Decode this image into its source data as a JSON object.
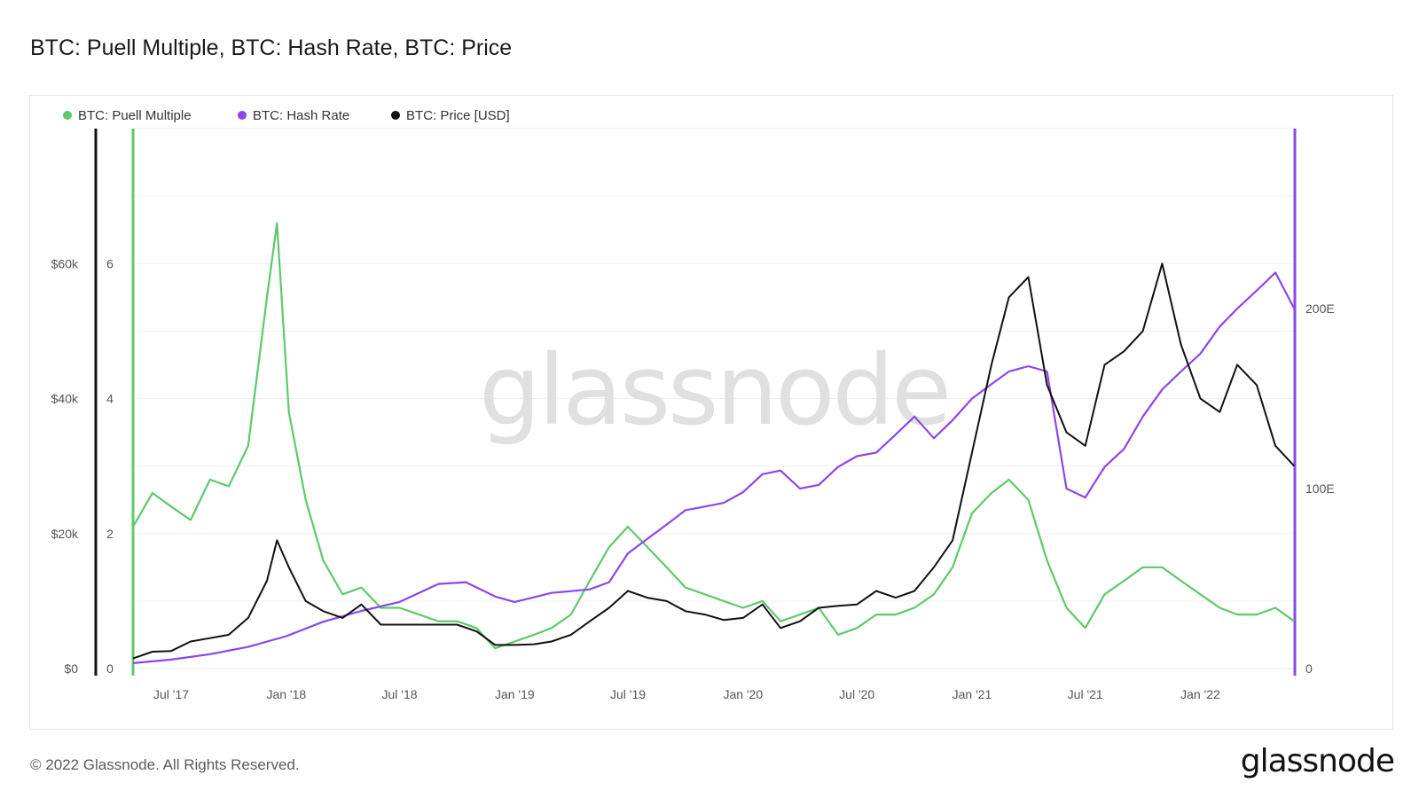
{
  "title": "BTC: Puell Multiple, BTC: Hash Rate, BTC: Price",
  "footer": {
    "copyright": "© 2022 Glassnode. All Rights Reserved.",
    "logo": "glassnode"
  },
  "watermark": "glassnode",
  "chart_data": {
    "type": "line",
    "legend_position": "top-left",
    "grid": true,
    "x_ticks": [
      "Jul '17",
      "Jan '18",
      "Jul '18",
      "Jan '19",
      "Jul '19",
      "Jan '20",
      "Jul '20",
      "Jan '21",
      "Jul '21",
      "Jan '22"
    ],
    "x_range": [
      "2017-05-01",
      "2022-06-01"
    ],
    "axes": {
      "price": {
        "ticks": [
          "$0",
          "$20k",
          "$40k",
          "$60k"
        ],
        "range": [
          0,
          80000
        ],
        "color": "#111111"
      },
      "puell": {
        "ticks": [
          "0",
          "2",
          "4",
          "6"
        ],
        "range": [
          0,
          8
        ],
        "color": "#5ec96a"
      },
      "hash": {
        "ticks": [
          "0",
          "100E",
          "200E"
        ],
        "range": [
          0,
          300
        ],
        "color": "#8b47e8"
      }
    },
    "series": [
      {
        "name": "BTC: Puell Multiple",
        "axis": "puell",
        "color": "#5ec96a",
        "x": [
          "2017-05-01",
          "2017-06-01",
          "2017-07-01",
          "2017-08-01",
          "2017-09-01",
          "2017-10-01",
          "2017-11-01",
          "2017-12-01",
          "2017-12-17",
          "2018-01-05",
          "2018-02-01",
          "2018-03-01",
          "2018-04-01",
          "2018-05-01",
          "2018-06-01",
          "2018-07-01",
          "2018-08-01",
          "2018-09-01",
          "2018-10-01",
          "2018-11-01",
          "2018-12-01",
          "2019-01-01",
          "2019-02-01",
          "2019-03-01",
          "2019-04-01",
          "2019-05-01",
          "2019-06-01",
          "2019-07-01",
          "2019-08-01",
          "2019-09-01",
          "2019-10-01",
          "2019-11-01",
          "2019-12-01",
          "2020-01-01",
          "2020-02-01",
          "2020-03-01",
          "2020-04-01",
          "2020-05-01",
          "2020-06-01",
          "2020-07-01",
          "2020-08-01",
          "2020-09-01",
          "2020-10-01",
          "2020-11-01",
          "2020-12-01",
          "2021-01-01",
          "2021-02-01",
          "2021-03-01",
          "2021-04-01",
          "2021-05-01",
          "2021-06-01",
          "2021-07-01",
          "2021-08-01",
          "2021-09-01",
          "2021-10-01",
          "2021-11-01",
          "2021-12-01",
          "2022-01-01",
          "2022-02-01",
          "2022-03-01",
          "2022-04-01",
          "2022-05-01",
          "2022-05-31"
        ],
        "values": [
          2.1,
          2.6,
          2.4,
          2.2,
          2.8,
          2.7,
          3.3,
          5.5,
          6.6,
          3.8,
          2.5,
          1.6,
          1.1,
          1.2,
          0.9,
          0.9,
          0.8,
          0.7,
          0.7,
          0.6,
          0.3,
          0.4,
          0.5,
          0.6,
          0.8,
          1.3,
          1.8,
          2.1,
          1.8,
          1.5,
          1.2,
          1.1,
          1.0,
          0.9,
          1.0,
          0.7,
          0.8,
          0.9,
          0.5,
          0.6,
          0.8,
          0.8,
          0.9,
          1.1,
          1.5,
          2.3,
          2.6,
          2.8,
          2.5,
          1.6,
          0.9,
          0.6,
          1.1,
          1.3,
          1.5,
          1.5,
          1.3,
          1.1,
          0.9,
          0.8,
          0.8,
          0.9,
          0.7
        ]
      },
      {
        "name": "BTC: Hash Rate",
        "axis": "hash",
        "color": "#8b47e8",
        "x": [
          "2017-05-01",
          "2017-07-01",
          "2017-09-01",
          "2017-11-01",
          "2018-01-01",
          "2018-03-01",
          "2018-05-01",
          "2018-07-01",
          "2018-09-01",
          "2018-10-15",
          "2018-12-01",
          "2019-01-01",
          "2019-03-01",
          "2019-05-01",
          "2019-06-01",
          "2019-07-01",
          "2019-08-01",
          "2019-09-01",
          "2019-10-01",
          "2019-11-01",
          "2019-12-01",
          "2020-01-01",
          "2020-02-01",
          "2020-03-01",
          "2020-04-01",
          "2020-05-01",
          "2020-06-01",
          "2020-07-01",
          "2020-08-01",
          "2020-09-01",
          "2020-10-01",
          "2020-11-01",
          "2020-12-01",
          "2021-01-01",
          "2021-02-01",
          "2021-03-01",
          "2021-04-01",
          "2021-05-01",
          "2021-06-01",
          "2021-07-01",
          "2021-08-01",
          "2021-09-01",
          "2021-10-01",
          "2021-11-01",
          "2021-12-01",
          "2022-01-01",
          "2022-02-01",
          "2022-03-01",
          "2022-04-01",
          "2022-05-01",
          "2022-05-31"
        ],
        "values": [
          3,
          5,
          8,
          12,
          18,
          26,
          32,
          37,
          47,
          48,
          40,
          37,
          42,
          44,
          48,
          64,
          72,
          80,
          88,
          90,
          92,
          98,
          108,
          110,
          100,
          102,
          112,
          118,
          120,
          130,
          140,
          128,
          138,
          150,
          158,
          165,
          168,
          165,
          100,
          95,
          112,
          122,
          140,
          155,
          165,
          175,
          190,
          200,
          210,
          220,
          200
        ]
      },
      {
        "name": "BTC: Price [USD]",
        "axis": "price",
        "color": "#111111",
        "x": [
          "2017-05-01",
          "2017-06-01",
          "2017-07-01",
          "2017-08-01",
          "2017-09-01",
          "2017-10-01",
          "2017-11-01",
          "2017-12-01",
          "2017-12-17",
          "2018-01-05",
          "2018-02-01",
          "2018-03-01",
          "2018-04-01",
          "2018-05-01",
          "2018-06-01",
          "2018-07-01",
          "2018-08-01",
          "2018-09-01",
          "2018-10-01",
          "2018-11-01",
          "2018-12-01",
          "2019-01-01",
          "2019-02-01",
          "2019-03-01",
          "2019-04-01",
          "2019-05-01",
          "2019-06-01",
          "2019-07-01",
          "2019-08-01",
          "2019-09-01",
          "2019-10-01",
          "2019-11-01",
          "2019-12-01",
          "2020-01-01",
          "2020-02-01",
          "2020-03-01",
          "2020-04-01",
          "2020-05-01",
          "2020-06-01",
          "2020-07-01",
          "2020-08-01",
          "2020-09-01",
          "2020-10-01",
          "2020-11-01",
          "2020-12-01",
          "2021-01-01",
          "2021-02-01",
          "2021-03-01",
          "2021-04-01",
          "2021-05-01",
          "2021-06-01",
          "2021-07-01",
          "2021-08-01",
          "2021-09-01",
          "2021-10-01",
          "2021-11-01",
          "2021-12-01",
          "2022-01-01",
          "2022-02-01",
          "2022-03-01",
          "2022-04-01",
          "2022-05-01",
          "2022-05-31"
        ],
        "values": [
          1500,
          2500,
          2600,
          4000,
          4500,
          5000,
          7500,
          13000,
          19000,
          15000,
          10000,
          8500,
          7500,
          9500,
          6500,
          6500,
          6500,
          6500,
          6500,
          5500,
          3500,
          3500,
          3600,
          4000,
          5000,
          7000,
          9000,
          11500,
          10500,
          10000,
          8500,
          8000,
          7200,
          7500,
          9500,
          6000,
          7000,
          9000,
          9300,
          9500,
          11500,
          10500,
          11500,
          15000,
          19000,
          32000,
          45000,
          55000,
          58000,
          42000,
          35000,
          33000,
          45000,
          47000,
          50000,
          60000,
          48000,
          40000,
          38000,
          45000,
          42000,
          33000,
          30000
        ]
      }
    ]
  }
}
